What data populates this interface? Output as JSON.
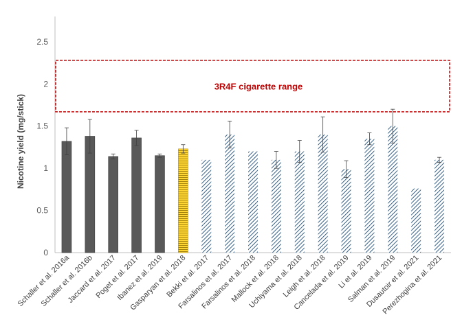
{
  "chart_data": {
    "type": "bar",
    "ylabel": "Nicotine yield (mg/stick)",
    "ylim": [
      0,
      2.8
    ],
    "y_ticks": [
      0,
      0.5,
      1,
      1.5,
      2,
      2.5
    ],
    "y_tick_labels": [
      "0",
      "0.5",
      "1",
      "1.5",
      "2",
      "2.5"
    ],
    "grid": false,
    "categories": [
      "Schaller et al. 2016a",
      "Schaller et al. 2016b",
      "Jaccard et al. 2017",
      "Poget et al. 2017",
      "Ibanez et al. 2019",
      "Gasparyan et al. 2018",
      "Bekki et al. 2017",
      "Farsalinos et al. 2017",
      "Farsalinos et al. 2018",
      "Mallock et al. 2018",
      "Uchiyama et al. 2018",
      "Leigh et al. 2018",
      "Cancelada et al. 2019",
      "Li et al. 2019",
      "Salman et al. 2019",
      "Dusautoir et al. 2021",
      "Perezhogina et al. 2021"
    ],
    "values": [
      1.32,
      1.38,
      1.14,
      1.36,
      1.15,
      1.23,
      1.1,
      1.4,
      1.2,
      1.1,
      1.2,
      1.4,
      0.99,
      1.35,
      1.5,
      0.76,
      1.1
    ],
    "error": [
      0.16,
      0.2,
      0.03,
      0.09,
      0.02,
      0.05,
      0,
      0.16,
      0,
      0.1,
      0.13,
      0.21,
      0.1,
      0.07,
      0.2,
      0,
      0.03
    ],
    "styles": [
      "solid",
      "solid",
      "solid",
      "solid",
      "solid",
      "gold",
      "hatch",
      "hatch",
      "hatch",
      "hatch",
      "hatch",
      "hatch",
      "hatch",
      "hatch",
      "hatch",
      "hatch",
      "hatch"
    ],
    "colors": {
      "solid": "#595959",
      "gold": "#ffd633",
      "hatch": "#1f4e79",
      "range": "#c00000",
      "axis": "#bfbfbf"
    },
    "range_band": {
      "label": "3R4F cigarette range",
      "low": 1.67,
      "high": 2.28
    }
  }
}
